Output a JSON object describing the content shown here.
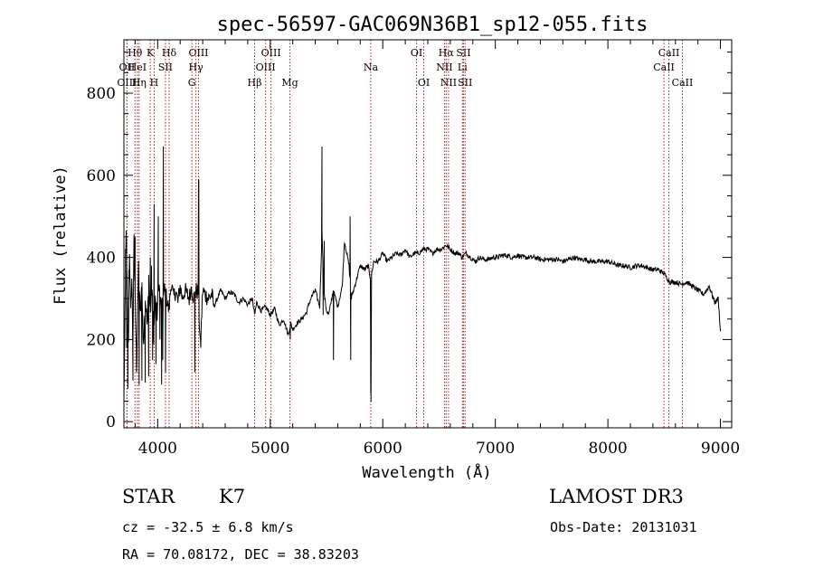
{
  "chart_data": {
    "type": "line",
    "title": "spec-56597-GAC069N36B1_sp12-055.fits",
    "xlabel": "Wavelength (Å)",
    "ylabel": "Flux (relative)",
    "xlim": [
      3700,
      9100
    ],
    "ylim": [
      -15,
      930
    ],
    "xticks": [
      4000,
      5000,
      6000,
      7000,
      8000,
      9000
    ],
    "yticks": [
      0,
      200,
      400,
      600,
      800
    ],
    "grid": false,
    "line_color": "#000000",
    "marker_color": "#b22222",
    "series": [
      {
        "x": [
          3700,
          3710,
          3720,
          3730,
          3740,
          3750,
          3760,
          3770,
          3780,
          3790,
          3800,
          3815,
          3830,
          3845,
          3860,
          3875,
          3890,
          3905,
          3920,
          3935,
          3950,
          3965,
          3980,
          3995,
          4010,
          4025,
          4040,
          4060,
          4080,
          4100,
          4120,
          4140,
          4160,
          4180,
          4200,
          4220,
          4240,
          4260,
          4280,
          4300,
          4320,
          4340,
          4360,
          4380,
          4400,
          4420,
          4450,
          4480,
          4500,
          4530,
          4560,
          4600,
          4640,
          4680,
          4720,
          4760,
          4800,
          4840,
          4861,
          4880,
          4920,
          4960,
          5000,
          5040,
          5080,
          5120,
          5160,
          5180,
          5200,
          5240,
          5280,
          5320,
          5360,
          5400,
          5440,
          5460,
          5480,
          5500,
          5520,
          5560,
          5600,
          5640,
          5660,
          5700,
          5720,
          5760,
          5800,
          5840,
          5870,
          5890,
          5895,
          5900,
          5920,
          5960,
          6000,
          6040,
          6080,
          6120,
          6160,
          6200,
          6240,
          6280,
          6320,
          6360,
          6400,
          6440,
          6480,
          6520,
          6560,
          6600,
          6640,
          6680,
          6700,
          6740,
          6780,
          6820,
          6860,
          6900,
          6940,
          6980,
          7020,
          7060,
          7100,
          7150,
          7200,
          7250,
          7300,
          7350,
          7400,
          7450,
          7500,
          7550,
          7600,
          7650,
          7700,
          7750,
          7800,
          7850,
          7900,
          7950,
          8000,
          8050,
          8100,
          8150,
          8200,
          8250,
          8300,
          8350,
          8400,
          8450,
          8500,
          8550,
          8600,
          8650,
          8700,
          8750,
          8800,
          8850,
          8900,
          8950,
          8980,
          9000
        ],
        "y": [
          50,
          250,
          480,
          300,
          180,
          420,
          260,
          350,
          200,
          440,
          300,
          150,
          380,
          260,
          330,
          180,
          300,
          240,
          350,
          270,
          320,
          210,
          300,
          260,
          340,
          290,
          280,
          320,
          300,
          270,
          340,
          300,
          320,
          290,
          330,
          300,
          320,
          310,
          300,
          330,
          300,
          320,
          315,
          180,
          320,
          310,
          300,
          310,
          280,
          300,
          320,
          300,
          315,
          310,
          290,
          300,
          285,
          300,
          260,
          290,
          270,
          280,
          260,
          275,
          235,
          250,
          210,
          240,
          225,
          240,
          250,
          265,
          300,
          320,
          280,
          460,
          310,
          270,
          260,
          320,
          280,
          330,
          440,
          380,
          300,
          340,
          380,
          370,
          380,
          350,
          50,
          360,
          390,
          390,
          410,
          390,
          400,
          410,
          405,
          420,
          400,
          410,
          410,
          420,
          420,
          410,
          420,
          420,
          430,
          420,
          410,
          410,
          400,
          410,
          400,
          390,
          400,
          395,
          395,
          400,
          400,
          405,
          405,
          400,
          405,
          400,
          400,
          400,
          395,
          395,
          395,
          395,
          390,
          395,
          400,
          395,
          395,
          390,
          390,
          390,
          390,
          385,
          380,
          380,
          375,
          380,
          380,
          375,
          370,
          370,
          360,
          340,
          340,
          335,
          340,
          330,
          320,
          310,
          330,
          290,
          300,
          220
        ]
      }
    ],
    "spikes": [
      [
        3714,
        420
      ],
      [
        3725,
        180
      ],
      [
        3735,
        80
      ],
      [
        3745,
        370
      ],
      [
        3780,
        100
      ],
      [
        3800,
        450
      ],
      [
        3812,
        120
      ],
      [
        3835,
        90
      ],
      [
        3860,
        100
      ],
      [
        3890,
        95
      ],
      [
        3920,
        110
      ],
      [
        3935,
        400
      ],
      [
        3945,
        380
      ],
      [
        3955,
        150
      ],
      [
        3968,
        530
      ],
      [
        3985,
        140
      ],
      [
        4005,
        500
      ],
      [
        4020,
        200
      ],
      [
        4035,
        90
      ],
      [
        4045,
        150
      ],
      [
        4050,
        670
      ],
      [
        4070,
        120
      ],
      [
        4330,
        120
      ],
      [
        4363,
        590
      ],
      [
        4365,
        590
      ],
      [
        4383,
        180
      ],
      [
        5178,
        200
      ],
      [
        5460,
        670
      ],
      [
        5470,
        260
      ],
      [
        5480,
        440
      ],
      [
        5562,
        150
      ],
      [
        5710,
        500
      ],
      [
        5715,
        150
      ],
      [
        5893,
        70
      ],
      [
        5895,
        160
      ]
    ]
  },
  "line_markers": [
    {
      "label": "Hθ",
      "wl": 3798,
      "row": 1
    },
    {
      "label": "OII",
      "wl": 3727,
      "row": 2
    },
    {
      "label": "HeI",
      "wl": 3820,
      "row": 2
    },
    {
      "label": "OIII",
      "wl": 3727,
      "row": 3
    },
    {
      "label": "Hη",
      "wl": 3835,
      "row": 3
    },
    {
      "label": "K",
      "wl": 3934,
      "row": 1
    },
    {
      "label": "SII",
      "wl": 4069,
      "row": 2
    },
    {
      "label": "H",
      "wl": 3969,
      "row": 3
    },
    {
      "label": "Hδ",
      "wl": 4102,
      "row": 1
    },
    {
      "label": "OIII",
      "wl": 4363,
      "row": 1
    },
    {
      "label": "Hγ",
      "wl": 4340,
      "row": 2
    },
    {
      "label": "G",
      "wl": 4304,
      "row": 3
    },
    {
      "label": "OIII",
      "wl": 5007,
      "row": 1
    },
    {
      "label": "OIII",
      "wl": 4959,
      "row": 2
    },
    {
      "label": "Hβ",
      "wl": 4861,
      "row": 3
    },
    {
      "label": "Mg",
      "wl": 5175,
      "row": 3
    },
    {
      "label": "Na",
      "wl": 5893,
      "row": 2
    },
    {
      "label": "OI",
      "wl": 6300,
      "row": 1
    },
    {
      "label": "OI",
      "wl": 6364,
      "row": 3
    },
    {
      "label": "Hα",
      "wl": 6563,
      "row": 1
    },
    {
      "label": "NII",
      "wl": 6548,
      "row": 2
    },
    {
      "label": "NII",
      "wl": 6584,
      "row": 3
    },
    {
      "label": "SII",
      "wl": 6717,
      "row": 1
    },
    {
      "label": "Li",
      "wl": 6708,
      "row": 2
    },
    {
      "label": "SII",
      "wl": 6731,
      "row": 3
    },
    {
      "label": "CaII",
      "wl": 8542,
      "row": 1
    },
    {
      "label": "CaII",
      "wl": 8498,
      "row": 2
    },
    {
      "label": "CaII",
      "wl": 8662,
      "row": 3
    }
  ],
  "info": {
    "object_class": "STAR",
    "subclass": "K7",
    "survey": "LAMOST DR3",
    "redshift": "cz = -32.5 ± 6.8 km/s",
    "obs_date": "Obs-Date: 20131031",
    "coords": "RA =  70.08172, DEC =  38.83203"
  }
}
